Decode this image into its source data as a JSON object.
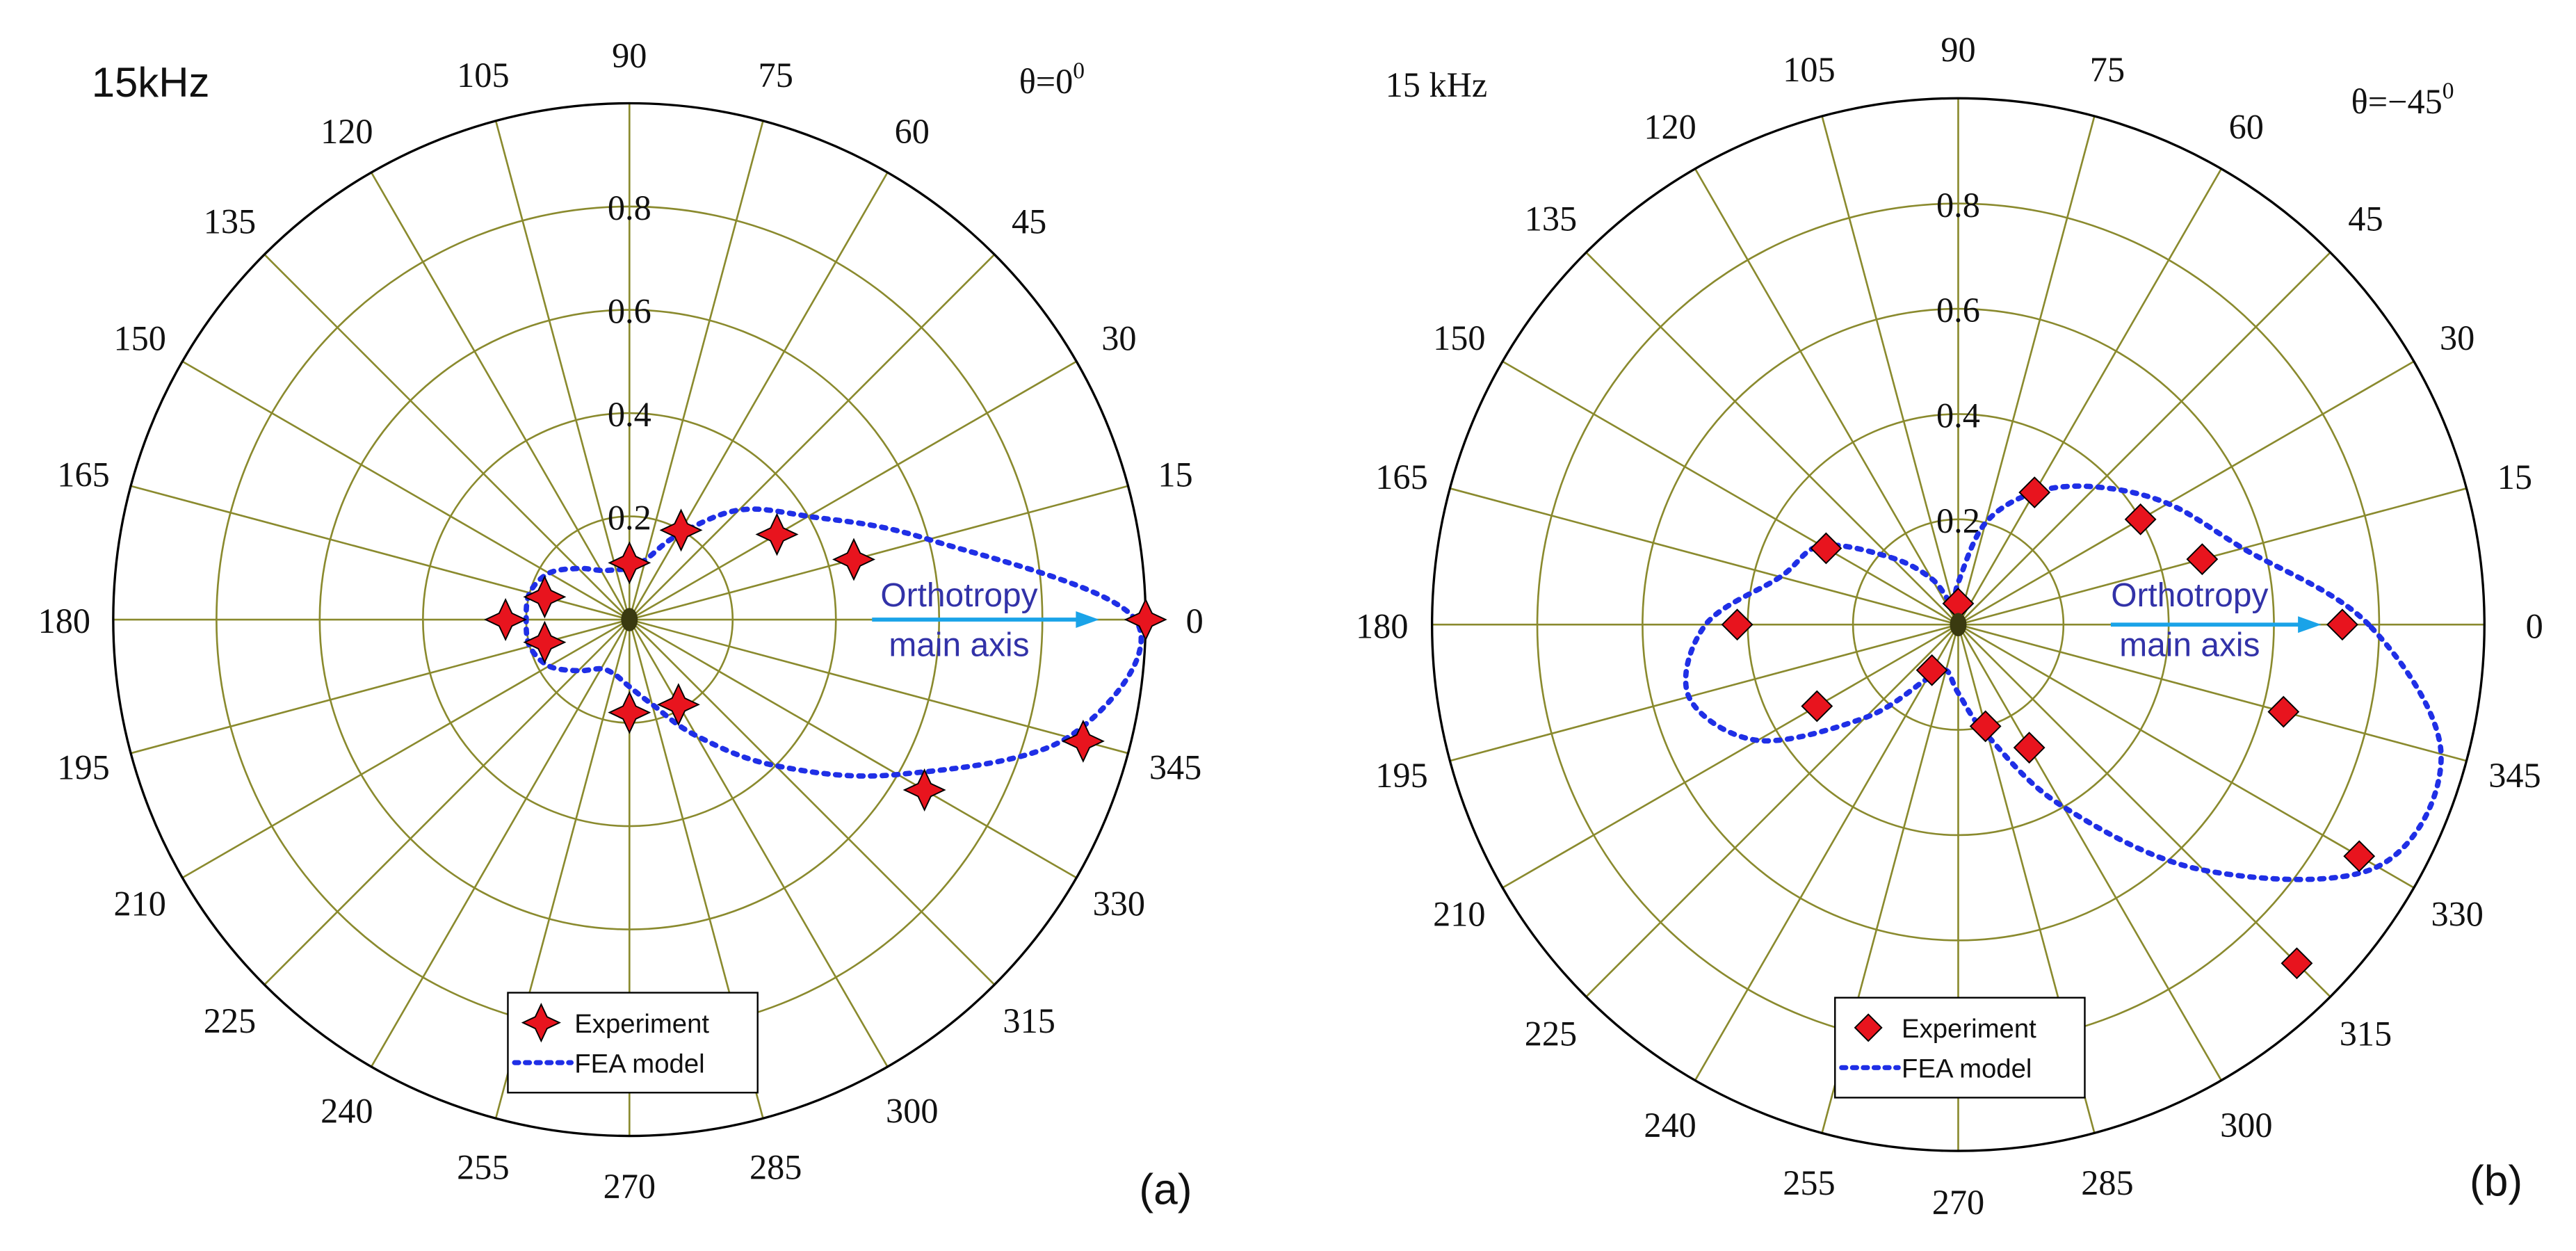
{
  "figure": {
    "colors": {
      "grid": "#8a8a2e",
      "frame": "#000000",
      "marker": "#e8141e",
      "fea": "#1f2fe6",
      "arrow": "#1aa3e8",
      "annotation": "#3232a8"
    }
  },
  "chart_data": [
    {
      "type": "polar",
      "panel_label": "(a)",
      "frequency_label": "15kHz",
      "orientation_label": "θ=0",
      "orientation_exponent": "0",
      "r_max": 1.0,
      "r_ticks": [
        "0.2",
        "0.4",
        "0.6",
        "0.8"
      ],
      "r_tick_values": [
        0.2,
        0.4,
        0.6,
        0.8
      ],
      "angle_ticks": [
        "0",
        "15",
        "30",
        "45",
        "60",
        "75",
        "90",
        "105",
        "120",
        "135",
        "150",
        "165",
        "180",
        "195",
        "210",
        "225",
        "240",
        "255",
        "270",
        "285",
        "300",
        "315",
        "330",
        "345"
      ],
      "annotation": {
        "line1": "Orthotropy",
        "line2": "main axis",
        "arrow_angle_deg": 0,
        "arrow_r_from": 0.47,
        "arrow_r_to": 0.91
      },
      "legend": {
        "experiment": "Experiment",
        "fea": "FEA model",
        "marker": "star4"
      },
      "series": [
        {
          "name": "Experiment",
          "points": [
            {
              "theta": 0,
              "r": 1.0
            },
            {
              "theta": 15,
              "r": 0.45
            },
            {
              "theta": 30,
              "r": 0.33
            },
            {
              "theta": 60,
              "r": 0.2
            },
            {
              "theta": 90,
              "r": 0.11
            },
            {
              "theta": 165,
              "r": 0.17
            },
            {
              "theta": 180,
              "r": 0.24
            },
            {
              "theta": 195,
              "r": 0.17
            },
            {
              "theta": 270,
              "r": 0.18
            },
            {
              "theta": 300,
              "r": 0.19
            },
            {
              "theta": 330,
              "r": 0.66
            },
            {
              "theta": 345,
              "r": 0.91
            }
          ]
        },
        {
          "name": "FEA model",
          "points": [
            {
              "theta": 0,
              "r": 0.98
            },
            {
              "theta": 15,
              "r": 0.6
            },
            {
              "theta": 30,
              "r": 0.4
            },
            {
              "theta": 45,
              "r": 0.3
            },
            {
              "theta": 60,
              "r": 0.19
            },
            {
              "theta": 75,
              "r": 0.12
            },
            {
              "theta": 90,
              "r": 0.1
            },
            {
              "theta": 105,
              "r": 0.1
            },
            {
              "theta": 120,
              "r": 0.11
            },
            {
              "theta": 135,
              "r": 0.14
            },
            {
              "theta": 150,
              "r": 0.18
            },
            {
              "theta": 165,
              "r": 0.2
            },
            {
              "theta": 180,
              "r": 0.2
            },
            {
              "theta": 195,
              "r": 0.2
            },
            {
              "theta": 210,
              "r": 0.18
            },
            {
              "theta": 225,
              "r": 0.14
            },
            {
              "theta": 240,
              "r": 0.11
            },
            {
              "theta": 255,
              "r": 0.11
            },
            {
              "theta": 270,
              "r": 0.13
            },
            {
              "theta": 285,
              "r": 0.17
            },
            {
              "theta": 300,
              "r": 0.26
            },
            {
              "theta": 315,
              "r": 0.4
            },
            {
              "theta": 330,
              "r": 0.6
            },
            {
              "theta": 345,
              "r": 0.88
            }
          ]
        }
      ]
    },
    {
      "type": "polar",
      "panel_label": "(b)",
      "frequency_label": "15 kHz",
      "orientation_label": "θ=−45",
      "orientation_exponent": "0",
      "r_max": 1.0,
      "r_ticks": [
        "0.2",
        "0.4",
        "0.6",
        "0.8"
      ],
      "r_tick_values": [
        0.2,
        0.4,
        0.6,
        0.8
      ],
      "angle_ticks": [
        "0",
        "15",
        "30",
        "45",
        "60",
        "75",
        "90",
        "105",
        "120",
        "135",
        "150",
        "165",
        "180",
        "195",
        "210",
        "225",
        "240",
        "255",
        "270",
        "285",
        "300",
        "315",
        "330",
        "345"
      ],
      "annotation": {
        "line1": "Orthotropy",
        "line2": "main axis",
        "arrow_angle_deg": 0,
        "arrow_r_from": 0.29,
        "arrow_r_to": 0.69
      },
      "legend": {
        "experiment": "Experiment",
        "fea": "FEA model",
        "marker": "diamond"
      },
      "series": [
        {
          "name": "Experiment",
          "points": [
            {
              "theta": 0,
              "r": 0.73
            },
            {
              "theta": 15,
              "r": 0.48
            },
            {
              "theta": 30,
              "r": 0.4
            },
            {
              "theta": 60,
              "r": 0.29
            },
            {
              "theta": 90,
              "r": 0.04
            },
            {
              "theta": 150,
              "r": 0.29
            },
            {
              "theta": 180,
              "r": 0.42
            },
            {
              "theta": 210,
              "r": 0.31
            },
            {
              "theta": 240,
              "r": 0.1
            },
            {
              "theta": 285,
              "r": 0.2
            },
            {
              "theta": 300,
              "r": 0.27
            },
            {
              "theta": 315,
              "r": 0.91
            },
            {
              "theta": 330,
              "r": 0.88
            },
            {
              "theta": 345,
              "r": 0.64
            }
          ]
        },
        {
          "name": "FEA model",
          "points": [
            {
              "theta": 0,
              "r": 0.78
            },
            {
              "theta": 15,
              "r": 0.56
            },
            {
              "theta": 30,
              "r": 0.46
            },
            {
              "theta": 45,
              "r": 0.37
            },
            {
              "theta": 60,
              "r": 0.29
            },
            {
              "theta": 75,
              "r": 0.2
            },
            {
              "theta": 90,
              "r": 0.08
            },
            {
              "theta": 105,
              "r": 0.04
            },
            {
              "theta": 120,
              "r": 0.1
            },
            {
              "theta": 135,
              "r": 0.18
            },
            {
              "theta": 150,
              "r": 0.3
            },
            {
              "theta": 165,
              "r": 0.35
            },
            {
              "theta": 180,
              "r": 0.48
            },
            {
              "theta": 195,
              "r": 0.53
            },
            {
              "theta": 210,
              "r": 0.44
            },
            {
              "theta": 225,
              "r": 0.25
            },
            {
              "theta": 240,
              "r": 0.12
            },
            {
              "theta": 255,
              "r": 0.09
            },
            {
              "theta": 270,
              "r": 0.13
            },
            {
              "theta": 285,
              "r": 0.22
            },
            {
              "theta": 300,
              "r": 0.4
            },
            {
              "theta": 315,
              "r": 0.66
            },
            {
              "theta": 330,
              "r": 0.92
            },
            {
              "theta": 345,
              "r": 0.95
            }
          ]
        }
      ]
    }
  ]
}
